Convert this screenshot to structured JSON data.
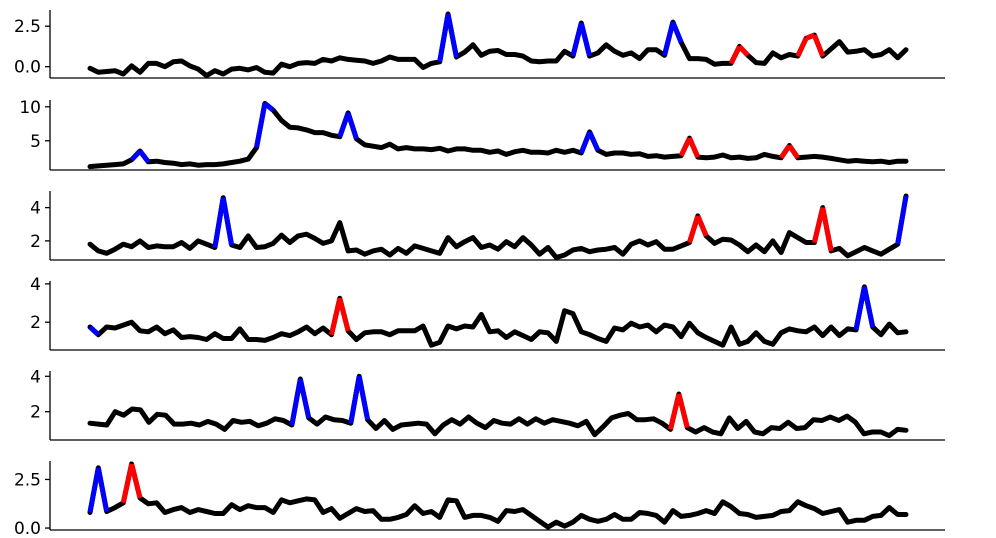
{
  "chart_data": [
    {
      "type": "line",
      "ylim": [
        -0.7,
        3.5
      ],
      "yticks": [
        {
          "value": 0.0,
          "label": "0.0"
        },
        {
          "value": 2.5,
          "label": "2.5"
        }
      ],
      "values": [
        -0.1,
        -0.35,
        -0.3,
        -0.25,
        -0.45,
        0.05,
        -0.35,
        0.2,
        0.2,
        0.0,
        0.3,
        0.35,
        0.05,
        -0.15,
        -0.55,
        -0.25,
        -0.45,
        -0.15,
        -0.1,
        -0.2,
        -0.05,
        -0.35,
        -0.4,
        0.15,
        0.0,
        0.2,
        0.25,
        0.2,
        0.45,
        0.35,
        0.55,
        0.45,
        0.4,
        0.35,
        0.2,
        0.35,
        0.6,
        0.45,
        0.45,
        0.45,
        -0.05,
        0.2,
        0.3,
        3.25,
        0.6,
        0.9,
        1.35,
        0.7,
        0.95,
        1.0,
        0.75,
        0.75,
        0.65,
        0.35,
        0.3,
        0.35,
        0.35,
        0.95,
        0.65,
        2.7,
        0.65,
        0.85,
        1.35,
        0.95,
        0.7,
        0.85,
        0.5,
        1.05,
        1.05,
        0.7,
        2.75,
        1.5,
        0.5,
        0.5,
        0.45,
        0.15,
        0.2,
        0.2,
        1.25,
        0.7,
        0.25,
        0.2,
        0.85,
        0.55,
        0.75,
        0.65,
        1.75,
        1.95,
        0.65,
        1.1,
        1.55,
        0.9,
        0.95,
        1.05,
        0.65,
        0.75,
        1.05,
        0.55,
        1.05
      ],
      "blue_spikes": [
        43,
        59,
        70
      ],
      "red_spikes": [
        78,
        86,
        87
      ]
    },
    {
      "type": "line",
      "ylim": [
        0.7,
        11.0
      ],
      "yticks": [
        {
          "value": 5,
          "label": "5"
        },
        {
          "value": 10,
          "label": "10"
        }
      ],
      "values": [
        1.2,
        1.3,
        1.4,
        1.5,
        1.6,
        2.2,
        3.5,
        1.9,
        2.0,
        1.8,
        1.7,
        1.5,
        1.6,
        1.4,
        1.5,
        1.5,
        1.6,
        1.8,
        2.0,
        2.3,
        4.0,
        10.5,
        9.5,
        8.0,
        7.0,
        6.9,
        6.6,
        6.2,
        6.2,
        5.8,
        5.6,
        9.1,
        5.3,
        4.4,
        4.2,
        4.0,
        4.5,
        3.8,
        4.0,
        3.8,
        3.8,
        3.7,
        3.9,
        3.5,
        3.8,
        3.8,
        3.6,
        3.6,
        3.3,
        3.5,
        3.0,
        3.4,
        3.6,
        3.3,
        3.3,
        3.2,
        3.6,
        3.3,
        3.6,
        3.2,
        6.3,
        3.6,
        3.0,
        3.2,
        3.2,
        3.0,
        3.1,
        2.7,
        2.8,
        2.6,
        2.7,
        2.8,
        5.4,
        2.6,
        2.5,
        2.6,
        2.9,
        2.5,
        2.6,
        2.4,
        2.5,
        3.0,
        2.7,
        2.5,
        4.3,
        2.5,
        2.6,
        2.7,
        2.6,
        2.4,
        2.2,
        2.0,
        2.1,
        2.0,
        1.9,
        2.0,
        1.8,
        2.0,
        2.0
      ],
      "blue_spikes": [
        6,
        21,
        31,
        60
      ],
      "red_spikes": [
        72,
        84
      ]
    },
    {
      "type": "line",
      "ylim": [
        0.85,
        5.0
      ],
      "yticks": [
        {
          "value": 2,
          "label": "2"
        },
        {
          "value": 4,
          "label": "4"
        }
      ],
      "values": [
        1.8,
        1.4,
        1.25,
        1.5,
        1.8,
        1.65,
        2.0,
        1.6,
        1.7,
        1.65,
        1.65,
        1.9,
        1.55,
        2.0,
        1.8,
        1.6,
        4.6,
        1.75,
        1.6,
        2.3,
        1.6,
        1.65,
        1.85,
        2.35,
        1.9,
        2.3,
        2.4,
        2.15,
        1.85,
        2.0,
        3.1,
        1.4,
        1.45,
        1.2,
        1.4,
        1.5,
        1.15,
        1.55,
        1.25,
        1.7,
        1.55,
        1.4,
        1.25,
        2.2,
        1.65,
        1.95,
        2.2,
        1.6,
        1.75,
        1.5,
        1.95,
        1.65,
        2.2,
        1.75,
        1.2,
        1.6,
        1.0,
        1.15,
        1.45,
        1.55,
        1.35,
        1.45,
        1.5,
        1.6,
        1.2,
        1.8,
        2.0,
        1.75,
        1.95,
        1.5,
        1.5,
        1.7,
        1.9,
        3.5,
        2.3,
        1.85,
        2.1,
        2.05,
        1.75,
        1.35,
        1.75,
        1.35,
        2.0,
        1.3,
        2.5,
        2.2,
        1.9,
        1.9,
        4.0,
        1.4,
        1.55,
        1.1,
        1.35,
        1.6,
        1.4,
        1.2,
        1.5,
        1.8,
        4.7
      ],
      "blue_spikes": [
        16,
        98
      ],
      "red_spikes": [
        73,
        88
      ]
    },
    {
      "type": "line",
      "ylim": [
        0.55,
        4.15
      ],
      "yticks": [
        {
          "value": 2,
          "label": "2"
        },
        {
          "value": 4,
          "label": "4"
        }
      ],
      "values": [
        1.75,
        1.35,
        1.75,
        1.7,
        1.85,
        2.0,
        1.55,
        1.5,
        1.75,
        1.4,
        1.6,
        1.2,
        1.25,
        1.2,
        1.1,
        1.4,
        1.15,
        1.15,
        1.65,
        1.1,
        1.1,
        1.05,
        1.2,
        1.4,
        1.3,
        1.5,
        1.75,
        1.4,
        1.7,
        1.35,
        3.25,
        1.55,
        1.1,
        1.45,
        1.5,
        1.5,
        1.35,
        1.55,
        1.55,
        1.55,
        1.8,
        0.8,
        0.95,
        1.8,
        1.65,
        1.8,
        1.75,
        2.4,
        1.5,
        1.55,
        1.2,
        1.5,
        1.3,
        1.1,
        1.5,
        1.45,
        1.0,
        2.6,
        2.45,
        1.5,
        1.35,
        1.15,
        1.0,
        1.7,
        1.6,
        1.95,
        1.75,
        1.85,
        1.5,
        1.85,
        1.75,
        1.25,
        1.95,
        1.45,
        1.2,
        1.0,
        0.8,
        1.75,
        0.85,
        1.0,
        1.45,
        1.0,
        0.85,
        1.45,
        1.65,
        1.55,
        1.5,
        1.75,
        1.3,
        1.75,
        1.3,
        1.65,
        1.6,
        3.85,
        1.75,
        1.35,
        1.9,
        1.45,
        1.5
      ],
      "blue_spikes": [
        0,
        93
      ],
      "red_spikes": [
        30
      ]
    },
    {
      "type": "line",
      "ylim": [
        0.4,
        4.3
      ],
      "yticks": [
        {
          "value": 2,
          "label": "2"
        },
        {
          "value": 4,
          "label": "4"
        }
      ],
      "values": [
        1.35,
        1.3,
        1.25,
        2.0,
        1.8,
        2.15,
        2.1,
        1.4,
        1.85,
        1.8,
        1.3,
        1.3,
        1.35,
        1.25,
        1.45,
        1.3,
        1.0,
        1.5,
        1.4,
        1.45,
        1.2,
        1.35,
        1.6,
        1.5,
        1.25,
        3.85,
        1.65,
        1.3,
        1.7,
        1.55,
        1.5,
        1.35,
        4.0,
        1.55,
        1.05,
        1.5,
        1.0,
        1.25,
        1.3,
        1.35,
        1.3,
        0.75,
        1.25,
        1.55,
        1.3,
        1.7,
        1.35,
        1.1,
        1.5,
        1.35,
        1.3,
        1.6,
        1.3,
        1.6,
        1.35,
        1.55,
        1.45,
        1.35,
        1.2,
        1.45,
        0.7,
        1.15,
        1.65,
        1.8,
        1.9,
        1.55,
        1.55,
        1.6,
        1.35,
        1.0,
        3.0,
        1.1,
        0.85,
        1.1,
        0.85,
        0.75,
        1.65,
        1.05,
        1.45,
        0.85,
        0.75,
        1.1,
        1.05,
        1.4,
        1.05,
        1.1,
        1.55,
        1.5,
        1.7,
        1.5,
        1.75,
        1.4,
        0.75,
        0.85,
        0.85,
        0.65,
        1.0,
        0.95
      ],
      "blue_spikes": [
        25,
        32
      ],
      "red_spikes": [
        70
      ]
    },
    {
      "type": "line",
      "ylim": [
        -0.1,
        3.45
      ],
      "yticks": [
        {
          "value": 0.0,
          "label": "0.0"
        },
        {
          "value": 2.5,
          "label": "2.5"
        }
      ],
      "values": [
        0.8,
        3.1,
        0.85,
        1.05,
        1.3,
        3.3,
        1.55,
        1.25,
        1.3,
        0.8,
        0.95,
        1.05,
        0.8,
        0.95,
        0.85,
        0.75,
        0.75,
        1.2,
        0.95,
        1.15,
        1.05,
        1.05,
        0.8,
        1.45,
        1.3,
        1.4,
        1.5,
        1.45,
        0.8,
        1.0,
        0.5,
        0.75,
        1.0,
        0.85,
        0.9,
        0.45,
        0.45,
        0.55,
        0.7,
        1.15,
        0.75,
        0.85,
        0.55,
        1.45,
        1.4,
        0.55,
        0.65,
        0.65,
        0.55,
        0.35,
        0.9,
        0.85,
        0.95,
        0.65,
        0.35,
        0.05,
        0.3,
        0.1,
        0.3,
        0.65,
        0.45,
        0.35,
        0.45,
        0.7,
        0.45,
        0.45,
        0.8,
        0.75,
        0.65,
        0.3,
        0.9,
        0.6,
        0.65,
        0.75,
        0.9,
        0.75,
        1.35,
        1.1,
        0.75,
        0.7,
        0.55,
        0.6,
        0.65,
        0.85,
        0.9,
        1.35,
        1.15,
        1.0,
        0.75,
        0.85,
        0.95,
        0.3,
        0.4,
        0.4,
        0.6,
        0.65,
        1.05,
        0.7,
        0.7
      ],
      "blue_spikes": [
        1
      ],
      "red_spikes": [
        5
      ]
    }
  ],
  "colors": {
    "normal": "#000000",
    "blue": "#0000ff",
    "red": "#ff0000"
  }
}
